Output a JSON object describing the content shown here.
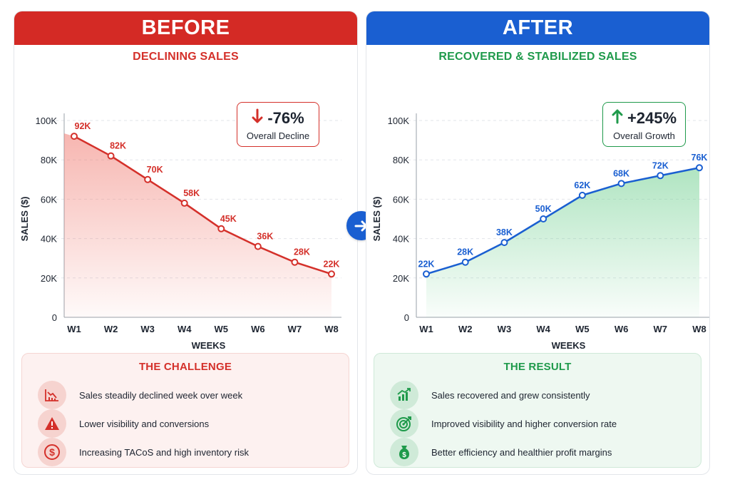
{
  "before": {
    "banner": "BEFORE",
    "subtitle": "DECLINING SALES",
    "badge": {
      "value": "-76%",
      "label": "Overall Decline"
    },
    "box": {
      "title": "THE CHALLENGE",
      "items": [
        {
          "icon": "declining-chart-icon",
          "text": "Sales steadily declined week over week"
        },
        {
          "icon": "warning-icon",
          "text": "Lower visibility and conversions"
        },
        {
          "icon": "dollar-icon",
          "text": "Increasing TACoS and high inventory risk"
        }
      ]
    }
  },
  "after": {
    "banner": "AFTER",
    "subtitle": "RECOVERED & STABILIZED SALES",
    "badge": {
      "value": "+245%",
      "label": "Overall Growth"
    },
    "box": {
      "title": "THE RESULT",
      "items": [
        {
          "icon": "growth-chart-icon",
          "text": "Sales recovered and grew consistently"
        },
        {
          "icon": "target-icon",
          "text": "Improved visibility and higher conversion rate"
        },
        {
          "icon": "money-bag-icon",
          "text": "Better efficiency and healthier profit margins"
        }
      ]
    }
  },
  "colors": {
    "before": "#d42a25",
    "after": "#1a5fd1",
    "decline": "#d4302a",
    "growth": "#1f9a4b"
  },
  "chart_data": [
    {
      "type": "area",
      "categories": [
        "W1",
        "W2",
        "W3",
        "W4",
        "W5",
        "W6",
        "W7",
        "W8"
      ],
      "values": [
        92,
        82,
        70,
        58,
        45,
        36,
        28,
        22
      ],
      "data_labels": [
        "92K",
        "82K",
        "70K",
        "58K",
        "45K",
        "36K",
        "28K",
        "22K"
      ],
      "xlabel": "WEEKS",
      "ylabel": "SALES ($)",
      "yticks": [
        "0",
        "20K",
        "40K",
        "60K",
        "80K",
        "100K"
      ],
      "ylim": [
        0,
        100
      ],
      "grid": true,
      "color": "#d4302a"
    },
    {
      "type": "area",
      "categories": [
        "W1",
        "W2",
        "W3",
        "W4",
        "W5",
        "W6",
        "W7",
        "W8"
      ],
      "values": [
        22,
        28,
        38,
        50,
        62,
        68,
        72,
        76
      ],
      "data_labels": [
        "22K",
        "28K",
        "38K",
        "50K",
        "62K",
        "68K",
        "72K",
        "76K"
      ],
      "xlabel": "WEEKS",
      "ylabel": "SALES ($)",
      "yticks": [
        "0",
        "20K",
        "40K",
        "60K",
        "80K",
        "100K"
      ],
      "ylim": [
        0,
        100
      ],
      "grid": true,
      "color": "#1a5fd1"
    }
  ]
}
